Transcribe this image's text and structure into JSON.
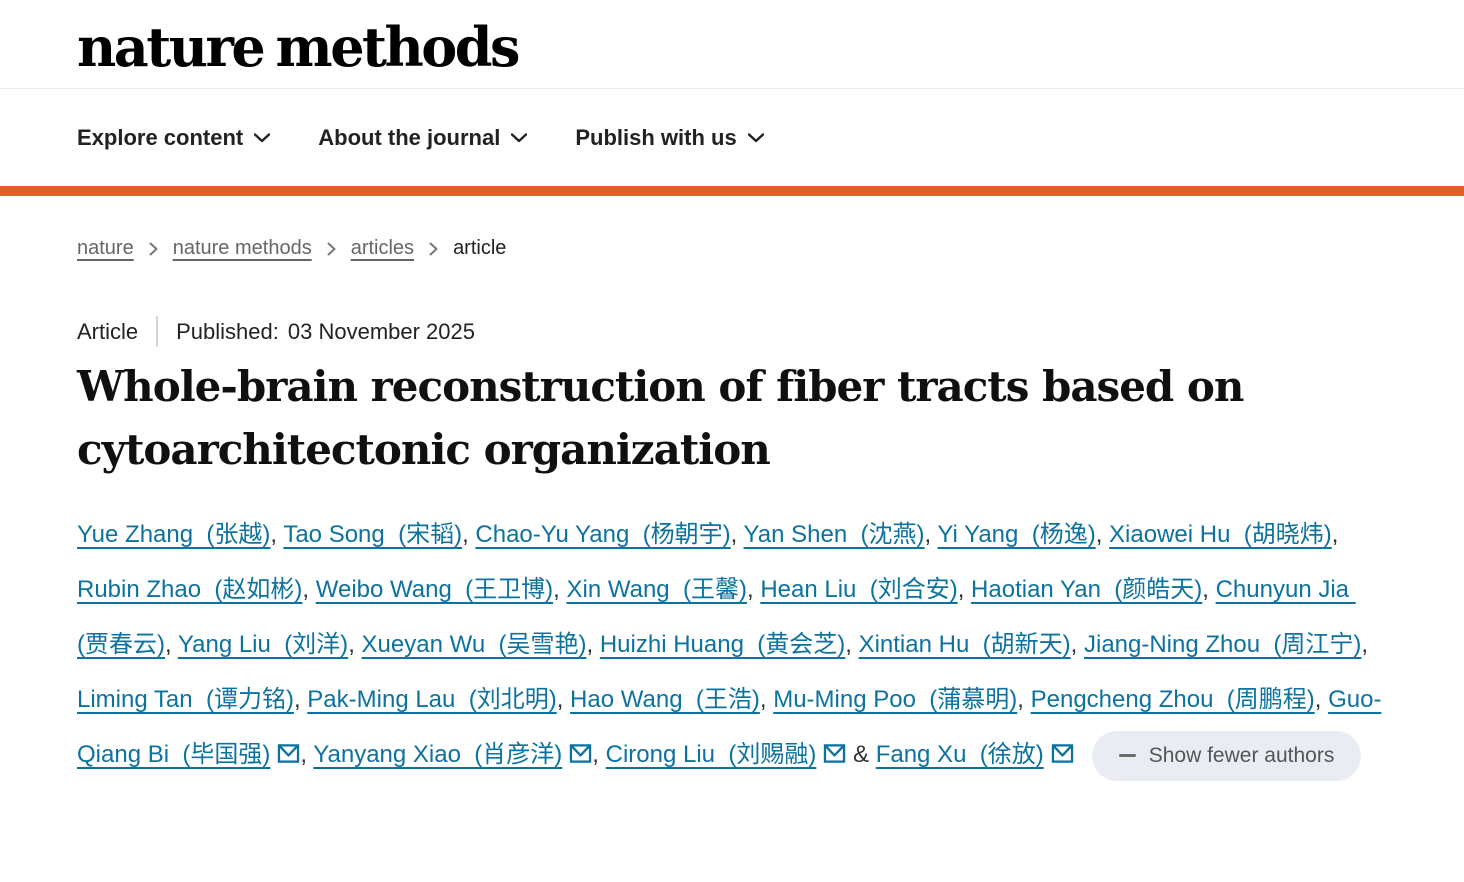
{
  "header": {
    "logo": "nature methods"
  },
  "nav": {
    "items": [
      {
        "label": "Explore content"
      },
      {
        "label": "About the journal"
      },
      {
        "label": "Publish with us"
      }
    ]
  },
  "breadcrumb": {
    "items": [
      {
        "label": "nature",
        "link": true
      },
      {
        "label": "nature methods",
        "link": true
      },
      {
        "label": "articles",
        "link": true
      },
      {
        "label": "article",
        "link": false
      }
    ]
  },
  "article": {
    "type_label": "Article",
    "published_label": "Published:",
    "published_date": "03 November 2025",
    "title": "Whole-brain reconstruction of fiber tracts based on cytoarchitectonic organization",
    "ampersand": "&",
    "show_fewer_label": "Show fewer authors",
    "authors": [
      {
        "name": "Yue Zhang",
        "cn": "张越",
        "email": false
      },
      {
        "name": "Tao Song",
        "cn": "宋韬",
        "email": false
      },
      {
        "name": "Chao-Yu Yang",
        "cn": "杨朝宇",
        "email": false
      },
      {
        "name": "Yan Shen",
        "cn": "沈燕",
        "email": false
      },
      {
        "name": "Yi Yang",
        "cn": "杨逸",
        "email": false
      },
      {
        "name": "Xiaowei Hu",
        "cn": "胡晓炜",
        "email": false
      },
      {
        "name": "Rubin Zhao",
        "cn": "赵如彬",
        "email": false
      },
      {
        "name": "Weibo Wang",
        "cn": "王卫博",
        "email": false
      },
      {
        "name": "Xin Wang",
        "cn": "王馨",
        "email": false
      },
      {
        "name": "Hean Liu",
        "cn": "刘合安",
        "email": false
      },
      {
        "name": "Haotian Yan",
        "cn": "颜皓天",
        "email": false
      },
      {
        "name": "Chunyun Jia",
        "cn": "贾春云",
        "email": false
      },
      {
        "name": "Yang Liu",
        "cn": "刘洋",
        "email": false
      },
      {
        "name": "Xueyan Wu",
        "cn": "吴雪艳",
        "email": false
      },
      {
        "name": "Huizhi Huang",
        "cn": "黄会芝",
        "email": false
      },
      {
        "name": "Xintian Hu",
        "cn": "胡新天",
        "email": false
      },
      {
        "name": "Jiang-Ning Zhou",
        "cn": "周江宁",
        "email": false
      },
      {
        "name": "Liming Tan",
        "cn": "谭力铭",
        "email": false
      },
      {
        "name": "Pak-Ming Lau",
        "cn": "刘北明",
        "email": false
      },
      {
        "name": "Hao Wang",
        "cn": "王浩",
        "email": false
      },
      {
        "name": "Mu-Ming Poo",
        "cn": "蒲慕明",
        "email": false
      },
      {
        "name": "Pengcheng Zhou",
        "cn": "周鹏程",
        "email": false
      },
      {
        "name": "Guo-Qiang Bi",
        "cn": "毕国强",
        "email": true
      },
      {
        "name": "Yanyang Xiao",
        "cn": "肖彦洋",
        "email": true
      },
      {
        "name": "Cirong Liu",
        "cn": "刘赐融",
        "email": true
      },
      {
        "name": "Fang Xu",
        "cn": "徐放",
        "email": true
      }
    ]
  },
  "colors": {
    "accent_orange": "#ea5b25",
    "link_teal": "#0c72a0"
  }
}
